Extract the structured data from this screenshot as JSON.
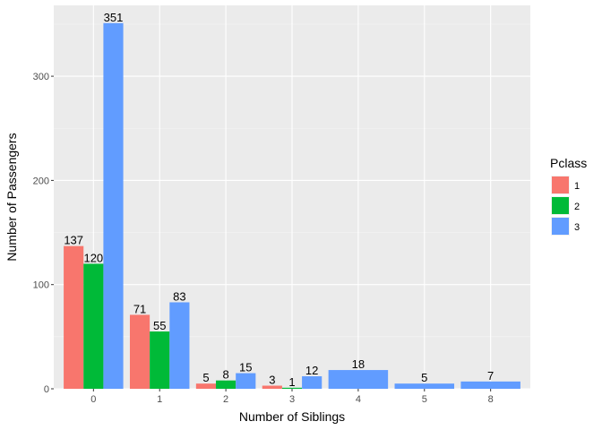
{
  "chart_data": {
    "type": "bar",
    "layout": "dodge",
    "categories": [
      "0",
      "1",
      "2",
      "3",
      "4",
      "5",
      "8"
    ],
    "xlabel": "Number of Siblings",
    "ylabel": "Number of Passengers",
    "ylim": [
      0,
      368
    ],
    "yticks": [
      0,
      100,
      200,
      300
    ],
    "grid": true,
    "legend": {
      "title": "Pclass",
      "position": "right"
    },
    "series": [
      {
        "name": "1",
        "color": "#F8766D",
        "values": [
          137,
          71,
          5,
          3,
          null,
          null,
          null
        ]
      },
      {
        "name": "2",
        "color": "#00BA38",
        "values": [
          120,
          55,
          8,
          1,
          null,
          null,
          null
        ]
      },
      {
        "name": "3",
        "color": "#619CFF",
        "values": [
          351,
          83,
          15,
          12,
          18,
          5,
          7
        ]
      }
    ]
  }
}
